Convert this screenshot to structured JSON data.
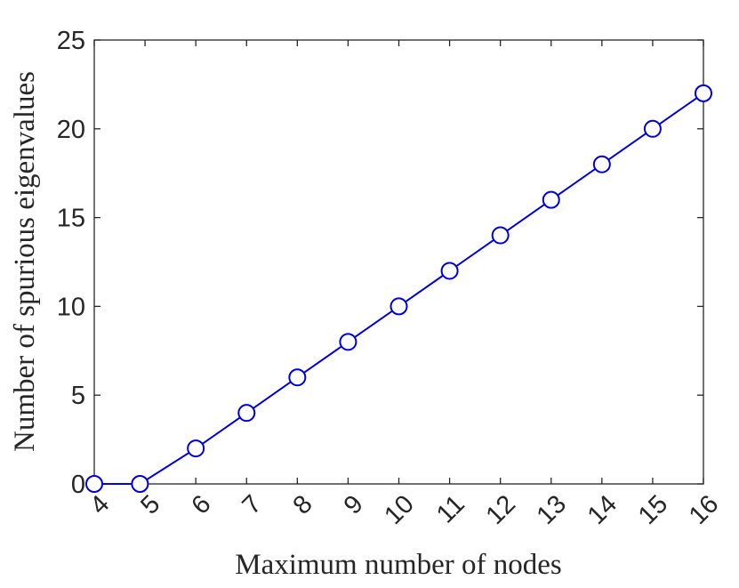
{
  "chart_data": {
    "type": "line",
    "title": "",
    "xlabel": "Maximum number of nodes",
    "ylabel": "Number of spurious eigenvalues",
    "xlim": [
      4,
      16
    ],
    "ylim": [
      0,
      25
    ],
    "x_ticks": [
      "4",
      "5",
      "6",
      "7",
      "8",
      "9",
      "10",
      "11",
      "12",
      "13",
      "14",
      "15",
      "16"
    ],
    "y_ticks": [
      "0",
      "5",
      "10",
      "15",
      "20",
      "25"
    ],
    "grid": false,
    "legend": "none",
    "series": [
      {
        "color": "#0000dd",
        "marker": "circle-open",
        "x": [
          4,
          4.9,
          6,
          7,
          8,
          9,
          10,
          11,
          12,
          13,
          14,
          15,
          16
        ],
        "y": [
          0,
          0,
          2,
          4,
          6,
          8,
          10,
          12,
          14,
          16,
          18,
          20,
          22
        ]
      }
    ]
  }
}
